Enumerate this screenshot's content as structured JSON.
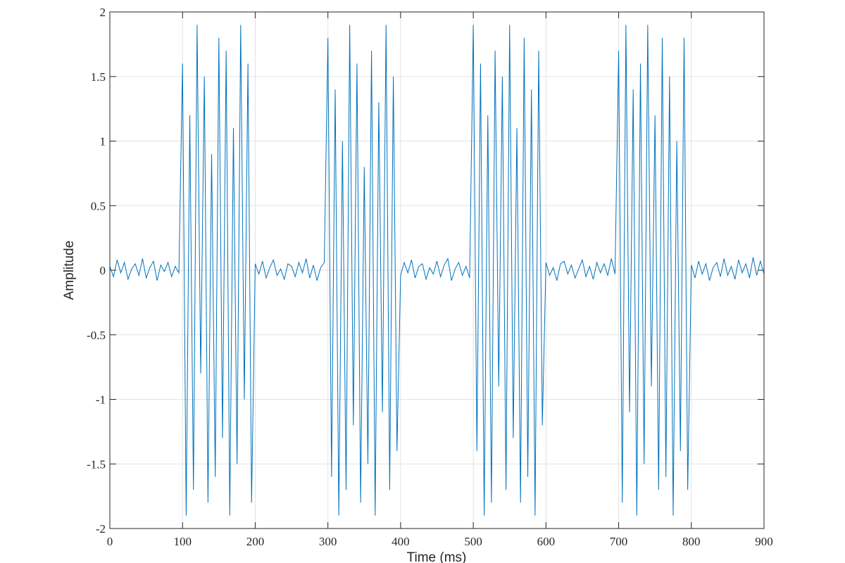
{
  "chart_data": {
    "type": "line",
    "x_label": "Time (ms)",
    "y_label": "Amplitude",
    "x": [
      0,
      5,
      10,
      15,
      20,
      25,
      30,
      35,
      40,
      45,
      50,
      55,
      60,
      65,
      70,
      75,
      80,
      85,
      90,
      95,
      100,
      105,
      110,
      115,
      120,
      125,
      130,
      135,
      140,
      145,
      150,
      155,
      160,
      165,
      170,
      175,
      180,
      185,
      190,
      195,
      200,
      205,
      210,
      215,
      220,
      225,
      230,
      235,
      240,
      245,
      250,
      255,
      260,
      265,
      270,
      275,
      280,
      285,
      290,
      295,
      300,
      305,
      310,
      315,
      320,
      325,
      330,
      335,
      340,
      345,
      350,
      355,
      360,
      365,
      370,
      375,
      380,
      385,
      390,
      395,
      400,
      405,
      410,
      415,
      420,
      425,
      430,
      435,
      440,
      445,
      450,
      455,
      460,
      465,
      470,
      475,
      480,
      485,
      490,
      495,
      500,
      505,
      510,
      515,
      520,
      525,
      530,
      535,
      540,
      545,
      550,
      555,
      560,
      565,
      570,
      575,
      580,
      585,
      590,
      595,
      600,
      605,
      610,
      615,
      620,
      625,
      630,
      635,
      640,
      645,
      650,
      655,
      660,
      665,
      670,
      675,
      680,
      685,
      690,
      695,
      700,
      705,
      710,
      715,
      720,
      725,
      730,
      735,
      740,
      745,
      750,
      755,
      760,
      765,
      770,
      775,
      780,
      785,
      790,
      795,
      800,
      805,
      810,
      815,
      820,
      825,
      830,
      835,
      840,
      845,
      850,
      855,
      860,
      865,
      870,
      875,
      880,
      885,
      890,
      895,
      900
    ],
    "series": [
      {
        "color": "#0072bd",
        "values": [
          0.03,
          -0.05,
          0.08,
          -0.02,
          0.06,
          -0.07,
          0.01,
          0.05,
          -0.04,
          0.09,
          -0.06,
          0.02,
          0.07,
          -0.08,
          0.04,
          -0.01,
          0.06,
          -0.05,
          0.03,
          -0.02,
          1.6,
          -1.9,
          1.2,
          -1.7,
          1.9,
          -0.8,
          1.5,
          -1.8,
          0.9,
          -1.6,
          1.8,
          -1.3,
          1.7,
          -1.9,
          1.1,
          -1.5,
          1.9,
          -1.0,
          1.6,
          -1.8,
          0.05,
          -0.03,
          0.07,
          -0.06,
          0.02,
          0.08,
          -0.04,
          0.01,
          -0.07,
          0.05,
          0.03,
          -0.05,
          0.06,
          -0.02,
          0.09,
          -0.06,
          0.04,
          -0.08,
          0.02,
          0.06,
          1.8,
          -1.6,
          1.4,
          -1.9,
          1.0,
          -1.7,
          1.9,
          -1.2,
          1.6,
          -1.8,
          0.8,
          -1.5,
          1.7,
          -1.9,
          1.3,
          -1.1,
          1.9,
          -1.7,
          1.5,
          -1.4,
          -0.04,
          0.06,
          -0.02,
          0.08,
          -0.06,
          0.03,
          0.05,
          -0.07,
          0.02,
          -0.03,
          0.07,
          -0.05,
          0.04,
          0.09,
          -0.08,
          0.01,
          0.06,
          -0.04,
          0.03,
          -0.06,
          1.9,
          -1.4,
          1.6,
          -1.9,
          1.2,
          -1.8,
          1.7,
          -0.9,
          1.5,
          -1.7,
          1.9,
          -1.3,
          1.1,
          -1.8,
          1.8,
          -1.6,
          1.4,
          -1.9,
          1.7,
          -1.2,
          0.06,
          -0.04,
          0.02,
          -0.08,
          0.05,
          0.07,
          -0.03,
          0.04,
          -0.06,
          0.01,
          0.08,
          -0.05,
          0.03,
          -0.07,
          0.06,
          -0.02,
          0.05,
          -0.04,
          0.09,
          -0.03,
          1.7,
          -1.8,
          1.9,
          -1.1,
          1.4,
          -1.9,
          1.6,
          -1.5,
          1.9,
          -0.9,
          1.2,
          -1.7,
          1.8,
          -1.6,
          1.5,
          -1.9,
          1.0,
          -1.4,
          1.8,
          -1.7,
          0.04,
          -0.06,
          0.07,
          -0.03,
          0.05,
          -0.08,
          0.02,
          0.06,
          -0.05,
          0.09,
          -0.04,
          0.03,
          -0.07,
          0.08,
          -0.02,
          0.05,
          -0.06,
          0.1,
          -0.04,
          0.07,
          -0.03
        ]
      }
    ],
    "xlim": [
      0,
      900
    ],
    "xticks": [
      0,
      100,
      200,
      300,
      400,
      500,
      600,
      700,
      800,
      900
    ],
    "ylim": [
      -2,
      2
    ],
    "yticks": [
      -2,
      -1.5,
      -1,
      -0.5,
      0,
      0.5,
      1,
      1.5,
      2
    ],
    "grid": true
  }
}
